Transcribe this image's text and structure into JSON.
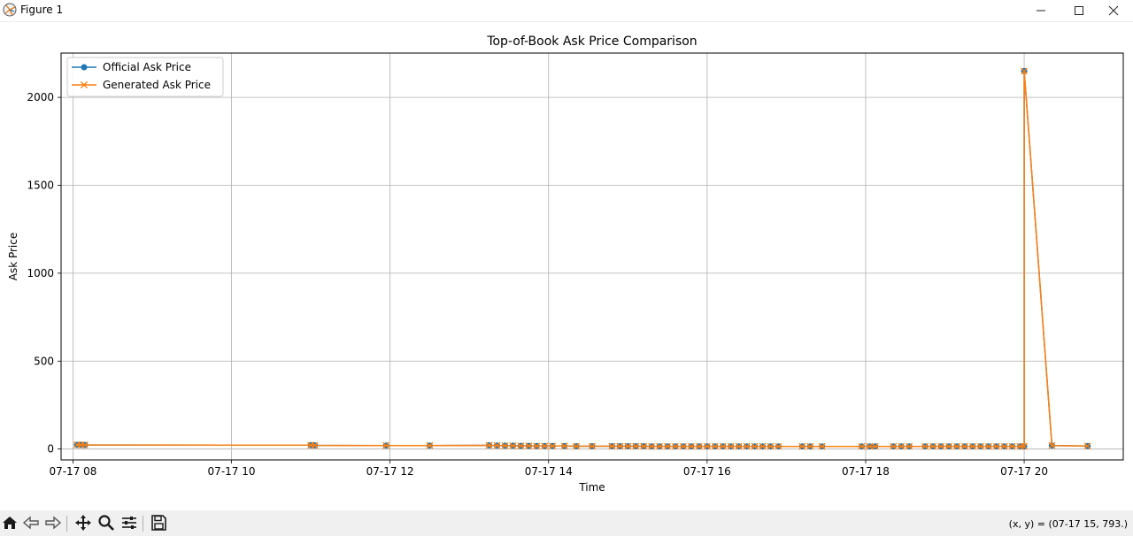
{
  "window": {
    "title": "Figure 1",
    "icons": {
      "app": "matplotlib-icon",
      "minimize": "minimize-icon",
      "maximize": "maximize-icon",
      "close": "close-icon"
    }
  },
  "toolbar": {
    "icons": [
      "home-icon",
      "back-arrow-icon",
      "forward-arrow-icon",
      "pan-move-icon",
      "zoom-magnifier-icon",
      "configure-subplots-icon",
      "save-floppy-icon"
    ],
    "coords_text": "(x, y) = (07-17 15, 793.)"
  },
  "chart_data": {
    "type": "line",
    "title": "Top-of-Book Ask Price Comparison",
    "xlabel": "Time",
    "ylabel": "Ask Price",
    "x_unit": "hour of day on 07-17",
    "xlim": [
      7.85,
      21.25
    ],
    "ylim": [
      -62,
      2252
    ],
    "x_ticks": [
      8,
      10,
      12,
      14,
      16,
      18,
      20
    ],
    "x_tick_labels": [
      "07-17 08",
      "07-17 10",
      "07-17 12",
      "07-17 14",
      "07-17 16",
      "07-17 18",
      "07-17 20"
    ],
    "y_ticks": [
      0,
      500,
      1000,
      1500,
      2000
    ],
    "y_tick_labels": [
      "0",
      "500",
      "1000",
      "1500",
      "2000"
    ],
    "grid": true,
    "legend_position": "upper-left",
    "series": [
      {
        "name": "Official Ask Price",
        "color": "#1f77b4",
        "marker": "circle",
        "x": [
          8.05,
          8.1,
          8.15,
          11.0,
          11.05,
          11.95,
          12.5,
          13.25,
          13.35,
          13.45,
          13.55,
          13.65,
          13.75,
          13.85,
          13.95,
          14.05,
          14.2,
          14.35,
          14.55,
          14.8,
          14.9,
          15.0,
          15.1,
          15.2,
          15.3,
          15.4,
          15.5,
          15.6,
          15.7,
          15.8,
          15.9,
          16.0,
          16.1,
          16.2,
          16.3,
          16.4,
          16.5,
          16.6,
          16.7,
          16.8,
          16.9,
          17.2,
          17.3,
          17.45,
          17.95,
          18.05,
          18.12,
          18.35,
          18.45,
          18.55,
          18.75,
          18.85,
          18.95,
          19.05,
          19.15,
          19.25,
          19.35,
          19.45,
          19.55,
          19.65,
          19.75,
          19.85,
          19.95,
          20.0,
          20.0,
          20.35,
          20.8
        ],
        "y": [
          24,
          24,
          23,
          22,
          21,
          20,
          20,
          21,
          20,
          19,
          19,
          18,
          18,
          17,
          17,
          17,
          17,
          16,
          16,
          16,
          16,
          16,
          16,
          16,
          15,
          15,
          15,
          15,
          15,
          15,
          15,
          15,
          15,
          15,
          15,
          15,
          15,
          15,
          15,
          15,
          15,
          15,
          15,
          15,
          15,
          15,
          15,
          15,
          15,
          15,
          15,
          15,
          15,
          15,
          15,
          15,
          15,
          15,
          15,
          15,
          15,
          15,
          15,
          15,
          2150,
          20,
          17
        ]
      },
      {
        "name": "Generated Ask Price",
        "color": "#ff7f0e",
        "marker": "x",
        "x": [
          8.05,
          8.1,
          8.15,
          11.0,
          11.05,
          11.95,
          12.5,
          13.25,
          13.35,
          13.45,
          13.55,
          13.65,
          13.75,
          13.85,
          13.95,
          14.05,
          14.2,
          14.35,
          14.55,
          14.8,
          14.9,
          15.0,
          15.1,
          15.2,
          15.3,
          15.4,
          15.5,
          15.6,
          15.7,
          15.8,
          15.9,
          16.0,
          16.1,
          16.2,
          16.3,
          16.4,
          16.5,
          16.6,
          16.7,
          16.8,
          16.9,
          17.2,
          17.3,
          17.45,
          17.95,
          18.05,
          18.12,
          18.35,
          18.45,
          18.55,
          18.75,
          18.85,
          18.95,
          19.05,
          19.15,
          19.25,
          19.35,
          19.45,
          19.55,
          19.65,
          19.75,
          19.85,
          19.95,
          20.0,
          20.0,
          20.35,
          20.8
        ],
        "y": [
          24,
          24,
          23,
          22,
          21,
          20,
          20,
          21,
          20,
          19,
          19,
          18,
          18,
          17,
          17,
          17,
          17,
          16,
          16,
          16,
          16,
          16,
          16,
          16,
          15,
          15,
          15,
          15,
          15,
          15,
          15,
          15,
          15,
          15,
          15,
          15,
          15,
          15,
          15,
          15,
          15,
          15,
          15,
          15,
          15,
          15,
          15,
          15,
          15,
          15,
          15,
          15,
          15,
          15,
          15,
          15,
          15,
          15,
          15,
          15,
          15,
          15,
          15,
          15,
          2150,
          20,
          17
        ]
      }
    ]
  }
}
